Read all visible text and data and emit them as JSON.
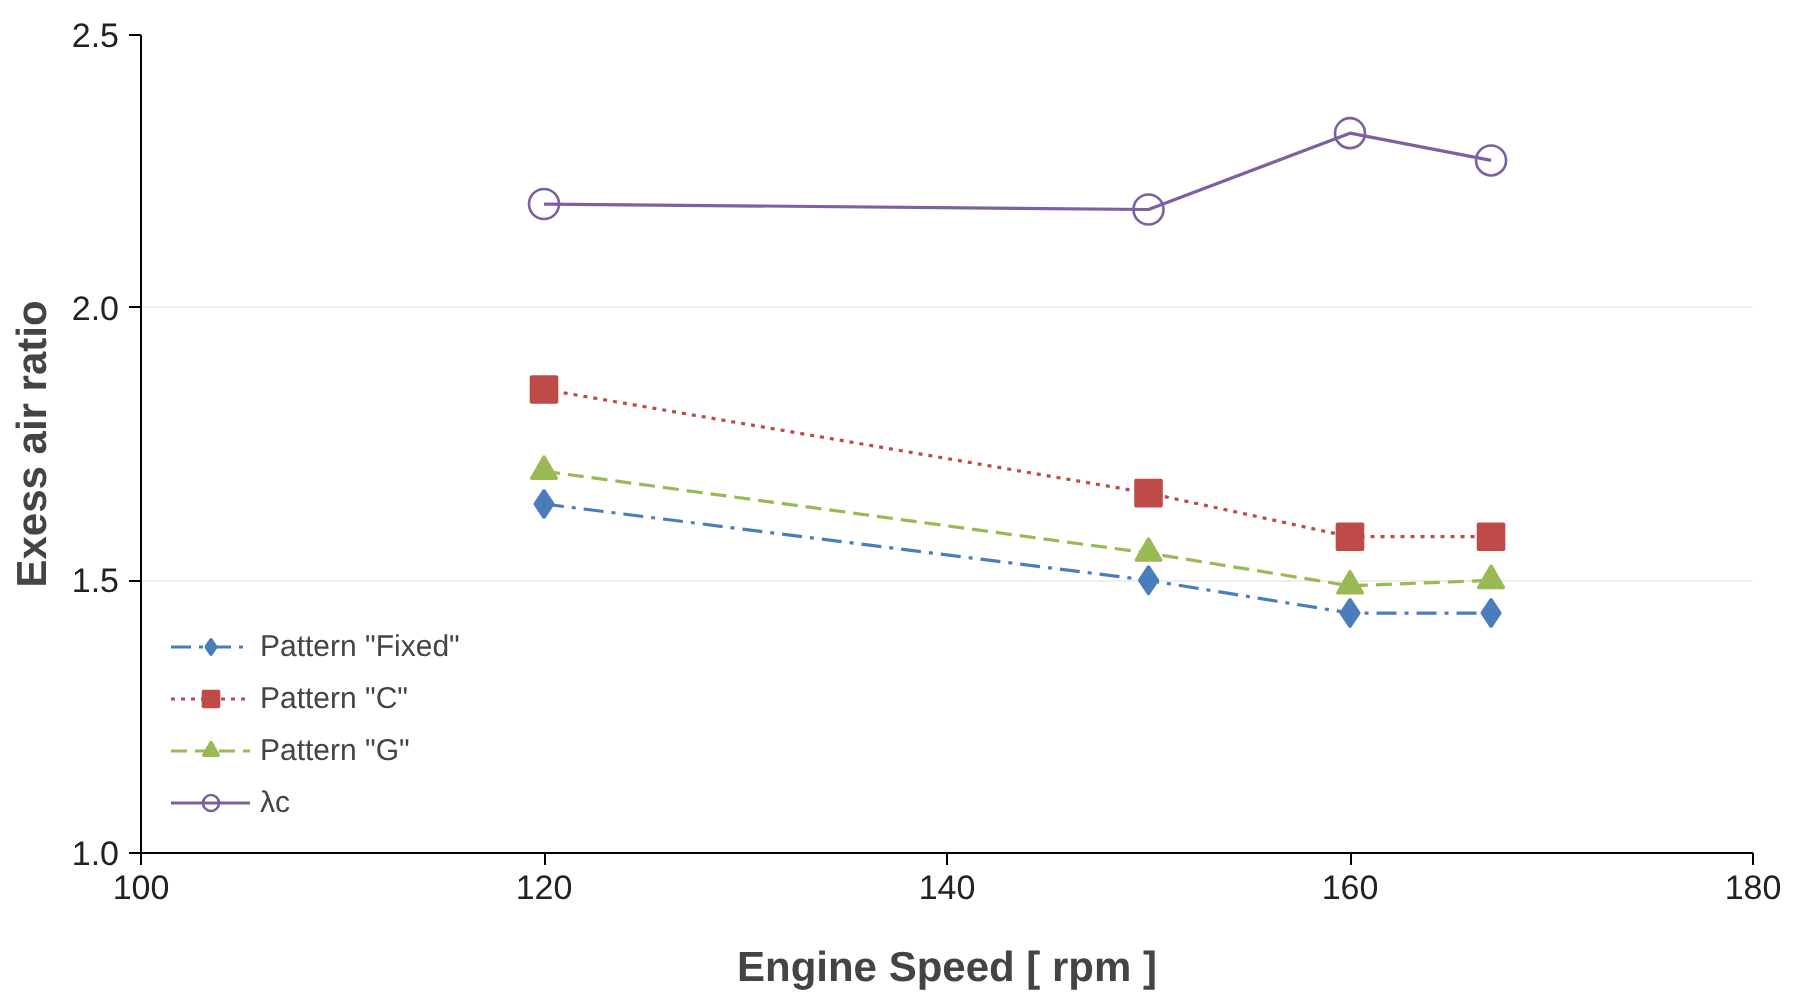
{
  "chart_data": {
    "type": "line",
    "xlabel": "Engine Speed [ rpm ]",
    "ylabel": "Exess air ratio",
    "x": [
      120,
      150,
      160,
      167
    ],
    "series": [
      {
        "name": "Pattern \"Fixed\"",
        "color": "#4a7ebb",
        "values": [
          1.64,
          1.5,
          1.44,
          1.44
        ],
        "marker": "diamond",
        "line_style": "dashdot"
      },
      {
        "name": "Pattern \"C\"",
        "color": "#be4b48",
        "values": [
          1.85,
          1.66,
          1.58,
          1.58
        ],
        "marker": "square",
        "line_style": "dotted"
      },
      {
        "name": "Pattern \"G\"",
        "color": "#98b954",
        "values": [
          1.7,
          1.55,
          1.49,
          1.5
        ],
        "marker": "triangle",
        "line_style": "dashed"
      },
      {
        "name": "λc",
        "color": "#7d60a0",
        "values": [
          2.19,
          2.18,
          2.32,
          2.27
        ],
        "marker": "circle",
        "line_style": "solid"
      }
    ],
    "xlim": [
      100,
      180
    ],
    "xticks": [
      100,
      120,
      140,
      160,
      180
    ],
    "ylim": [
      1.0,
      2.5
    ],
    "yticks": [
      {
        "value": 1.0,
        "label": "1.0"
      },
      {
        "value": 1.5,
        "label": "1.5"
      },
      {
        "value": 2.0,
        "label": "2.0"
      },
      {
        "value": 2.5,
        "label": "2.5"
      }
    ],
    "grid": "y",
    "legend": "bottom left"
  }
}
